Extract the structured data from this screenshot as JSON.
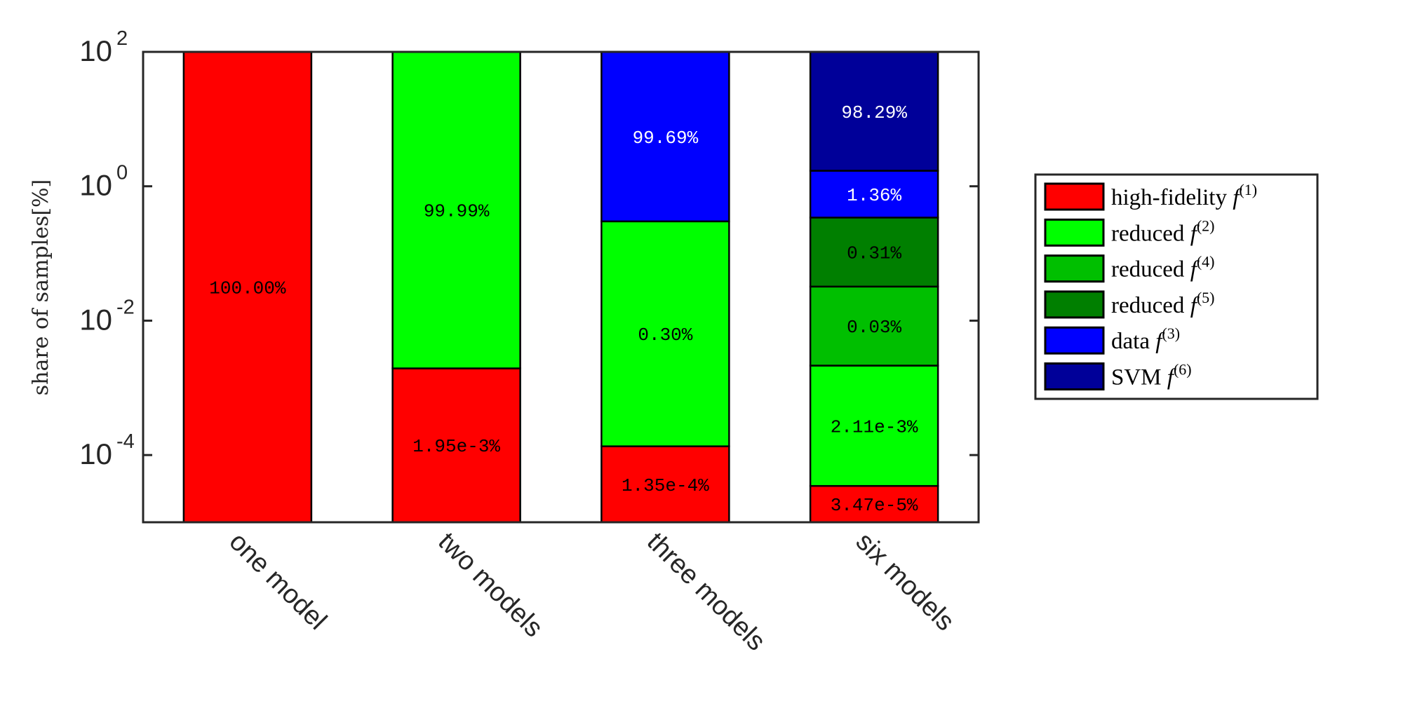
{
  "chart_data": {
    "type": "bar",
    "stacked": true,
    "title": "",
    "xlabel": "",
    "ylabel": "share of samples[%]",
    "yscale": "log",
    "ylim": [
      1e-05,
      100
    ],
    "yticks": [
      {
        "base": "10",
        "exp": "2",
        "value": 100
      },
      {
        "base": "10",
        "exp": "0",
        "value": 1
      },
      {
        "base": "10",
        "exp": "-2",
        "value": 0.01
      },
      {
        "base": "10",
        "exp": "-4",
        "value": 0.0001
      }
    ],
    "categories": [
      "one model",
      "two models",
      "three models",
      "six models"
    ],
    "legend_position": "right",
    "series": [
      {
        "name": "high-fidelity",
        "sup": "(1)",
        "color": "#ff0000",
        "label_color": "#000000",
        "values": [
          100.0,
          0.00195,
          0.000135,
          3.47e-05
        ],
        "labels": [
          "100.00%",
          "1.95e-3%",
          "1.35e-4%",
          "3.47e-5%"
        ]
      },
      {
        "name": "reduced",
        "sup": "(2)",
        "color": "#00ff00",
        "label_color": "#000000",
        "values": [
          null,
          99.99,
          0.3,
          0.00211
        ],
        "labels": [
          null,
          "99.99%",
          "0.30%",
          "2.11e-3%"
        ]
      },
      {
        "name": "reduced",
        "sup": "(4)",
        "color": "#00bf00",
        "label_color": "#000000",
        "values": [
          null,
          null,
          null,
          0.03
        ],
        "labels": [
          null,
          null,
          null,
          "0.03%"
        ]
      },
      {
        "name": "reduced",
        "sup": "(5)",
        "color": "#007f00",
        "label_color": "#000000",
        "values": [
          null,
          null,
          null,
          0.31
        ],
        "labels": [
          null,
          null,
          null,
          "0.31%"
        ]
      },
      {
        "name": "data",
        "sup": "(3)",
        "color": "#0000ff",
        "label_color": "#ffffff",
        "values": [
          null,
          null,
          99.69,
          1.36
        ],
        "labels": [
          null,
          null,
          "99.69%",
          "1.36%"
        ]
      },
      {
        "name": "SVM",
        "sup": "(6)",
        "color": "#000099",
        "label_color": "#ffffff",
        "values": [
          null,
          null,
          null,
          98.29
        ],
        "labels": [
          null,
          null,
          null,
          "98.29%"
        ]
      }
    ],
    "legend_symbol": "f"
  }
}
